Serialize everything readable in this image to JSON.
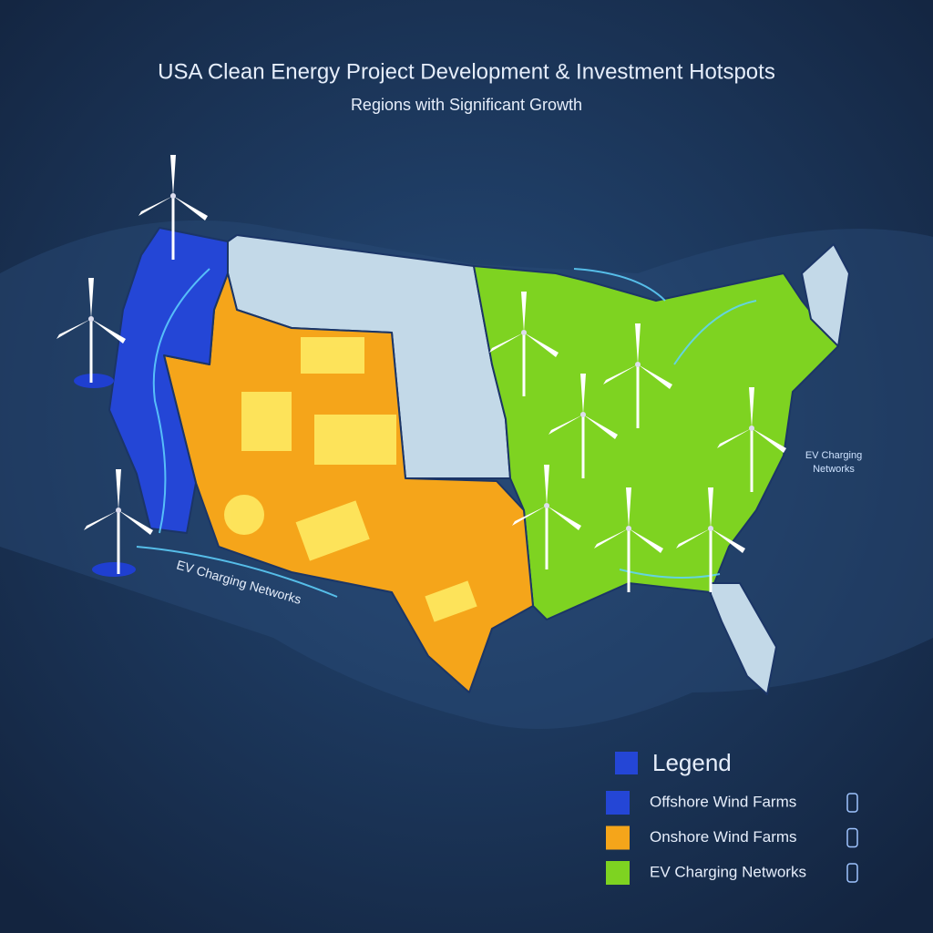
{
  "header": {
    "title": "USA Clean Energy Project Development & Investment Hotspots",
    "subtitle": "Regions with Significant Growth"
  },
  "annotations": {
    "west": "EV Charging Networks",
    "east": "EV Charging Networks"
  },
  "legend": {
    "title": "Legend",
    "items": [
      {
        "label": "Offshore Wind Farms",
        "color": "#2446d6"
      },
      {
        "label": "Onshore Wind Farms",
        "color": "#f5a51a"
      },
      {
        "label": "EV Charging Networks",
        "color": "#7ed321"
      }
    ]
  }
}
